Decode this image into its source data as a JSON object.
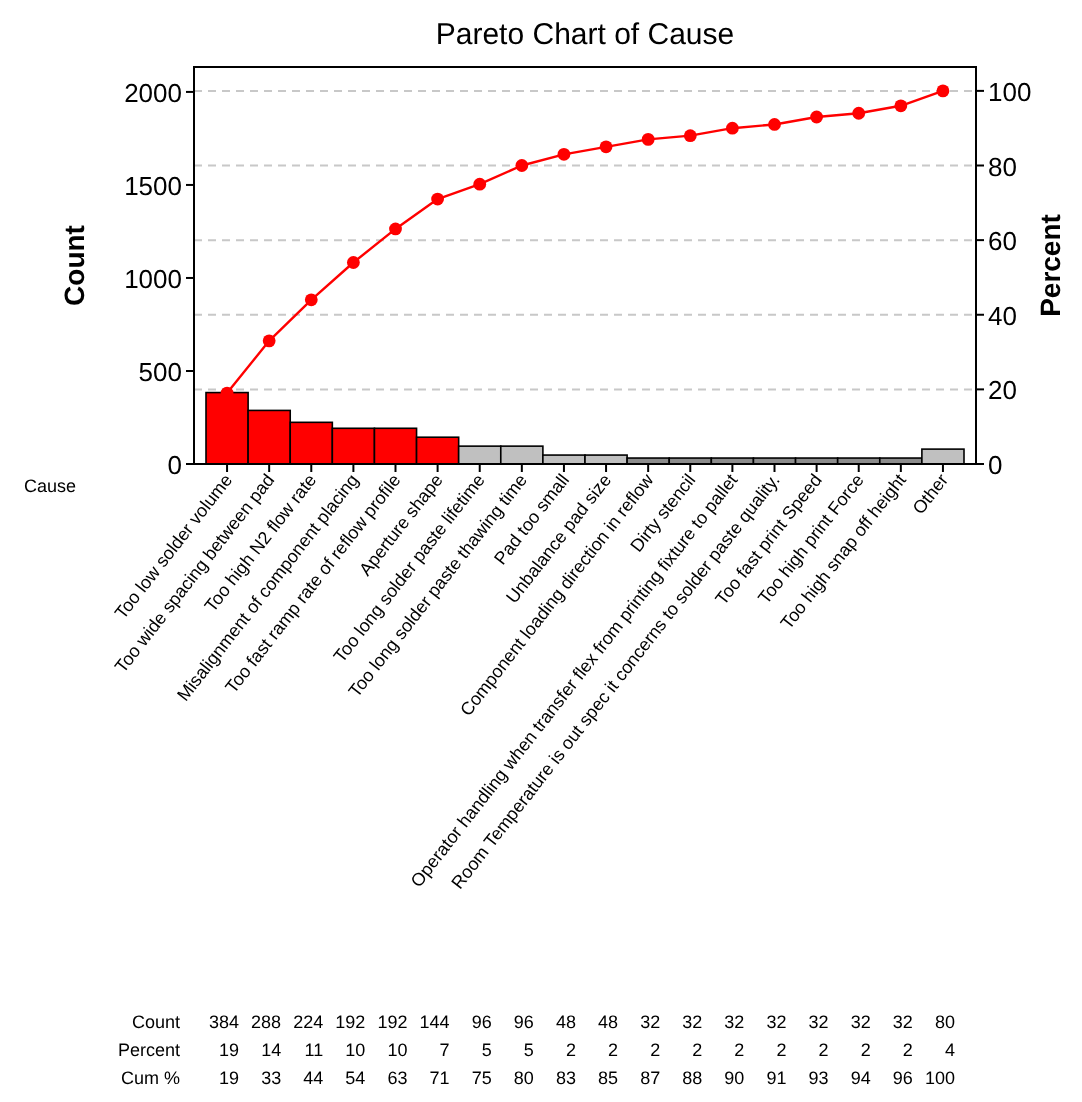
{
  "chart_data": {
    "type": "bar",
    "title": "Pareto Chart of Cause",
    "xlabel": "Cause",
    "ylabel": "Count",
    "y2label": "Percent",
    "categories": [
      "Too low solder volume",
      "Too wide spacing between pad",
      "Too high N2 flow rate",
      "Misalignment of component placing",
      "Too fast ramp rate of reflow profile",
      "Aperture shape",
      "Too long solder paste lifetime",
      "Too long solder paste thawing time",
      "Pad too small",
      "Unbalance pad size",
      "Component loading direction in reflow",
      "Dirty stencil",
      "Operator handling when transfer flex from printing fixture to pallet",
      "Room Temperature is out spec it concerns to solder paste quality.",
      "Too fast print Speed",
      "Too high print Force",
      "Too high snap off height",
      "Other"
    ],
    "series": [
      {
        "colors": [
          "#ff0000",
          "#ff0000",
          "#ff0000",
          "#ff0000",
          "#ff0000",
          "#ff0000",
          "#c0c0c0",
          "#c0c0c0",
          "#c0c0c0",
          "#c0c0c0",
          "#8c8c8c",
          "#8c8c8c",
          "#8c8c8c",
          "#8c8c8c",
          "#8c8c8c",
          "#8c8c8c",
          "#8c8c8c",
          "#c0c0c0"
        ],
        "values": [
          384,
          288,
          224,
          192,
          192,
          144,
          96,
          96,
          48,
          48,
          32,
          32,
          32,
          32,
          32,
          32,
          32,
          80
        ]
      },
      {
        "type": "line",
        "axis": "y2",
        "color": "#ff0000",
        "values": [
          19,
          33,
          44,
          54,
          63,
          71,
          75,
          80,
          83,
          85,
          87,
          88,
          90,
          91,
          93,
          94,
          96,
          100
        ]
      }
    ],
    "annotations": [
      "Count",
      "Percent",
      "Cum %",
      "19",
      "14",
      "11",
      "10",
      "10",
      "7",
      "5",
      "5",
      "2",
      "2",
      "2",
      "2",
      "2",
      "2",
      "2",
      "2",
      "2",
      "4"
    ],
    "ylim": [
      0,
      2134
    ],
    "yticks": [
      0,
      500,
      1000,
      1500,
      2000
    ],
    "y2lim": [
      0,
      106.4
    ],
    "y2ticks": [
      0,
      20,
      40,
      60,
      80,
      100
    ],
    "grid": true,
    "marker": "circle",
    "line_style": "solid",
    "data_labels": true
  }
}
